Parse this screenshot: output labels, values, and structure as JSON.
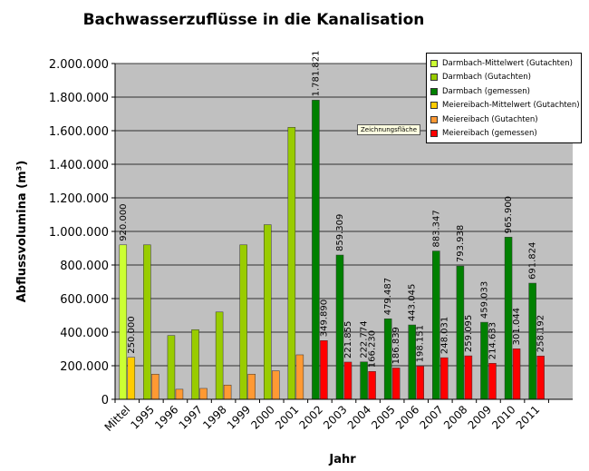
{
  "chart_data": {
    "type": "bar",
    "title": "Bachwasserzuflüsse in die Kanalisation",
    "xlabel": "Jahr",
    "ylabel": "Abflussvolumina (m³)",
    "ylim": [
      0,
      2000000
    ],
    "yticks": [
      "0",
      "200.000",
      "400.000",
      "600.000",
      "800.000",
      "1.000.000",
      "1.200.000",
      "1.400.000",
      "1.600.000",
      "1.800.000",
      "2.000.000"
    ],
    "categories": [
      "Mittel",
      "1995",
      "1996",
      "1997",
      "1998",
      "1999",
      "2000",
      "2001",
      "2002",
      "2003",
      "2004",
      "2005",
      "2006",
      "2007",
      "2008",
      "2009",
      "2010",
      "2011",
      ""
    ],
    "series": [
      {
        "name": "Darmbach-Mittelwert (Gutachten)",
        "color": "#ccff33",
        "values": [
          920000,
          null,
          null,
          null,
          null,
          null,
          null,
          null,
          null,
          null,
          null,
          null,
          null,
          null,
          null,
          null,
          null,
          null,
          null
        ],
        "labels": [
          "920.000",
          "",
          "",
          "",
          "",
          "",
          "",
          "",
          "",
          "",
          "",
          "",
          "",
          "",
          "",
          "",
          "",
          "",
          ""
        ]
      },
      {
        "name": "Darmbach (Gutachten)",
        "color": "#99cc00",
        "values": [
          null,
          920000,
          380000,
          415000,
          520000,
          920000,
          1040000,
          1620000,
          null,
          null,
          null,
          null,
          null,
          null,
          null,
          null,
          null,
          null,
          null
        ],
        "labels": []
      },
      {
        "name": "Darmbach (gemessen)",
        "color": "#008000",
        "values": [
          null,
          null,
          null,
          null,
          null,
          null,
          null,
          null,
          1781821,
          859309,
          222774,
          479487,
          443045,
          883347,
          793938,
          459033,
          965900,
          691824,
          null
        ],
        "labels": [
          "",
          "",
          "",
          "",
          "",
          "",
          "",
          "",
          "1.781.821",
          "859.309",
          "222.774",
          "479.487",
          "443.045",
          "883.347",
          "793.938",
          "459.033",
          "965.900",
          "691.824",
          ""
        ]
      },
      {
        "name": "Meiereibach-Mittelwert (Gutachten)",
        "color": "#ffcc00",
        "values": [
          250000,
          null,
          null,
          null,
          null,
          null,
          null,
          null,
          null,
          null,
          null,
          null,
          null,
          null,
          null,
          null,
          null,
          null,
          null
        ],
        "labels": [
          "250.000",
          "",
          "",
          "",
          "",
          "",
          "",
          "",
          "",
          "",
          "",
          "",
          "",
          "",
          "",
          "",
          "",
          "",
          ""
        ]
      },
      {
        "name": "Meiereibach (Gutachten)",
        "color": "#ff9933",
        "values": [
          null,
          150000,
          60000,
          65000,
          85000,
          150000,
          170000,
          265000,
          null,
          null,
          null,
          null,
          null,
          null,
          null,
          null,
          null,
          null,
          null
        ],
        "labels": []
      },
      {
        "name": "Meiereibach (gemessen)",
        "color": "#ff0000",
        "values": [
          null,
          null,
          null,
          null,
          null,
          null,
          null,
          null,
          349890,
          221855,
          166230,
          186839,
          198151,
          248031,
          259095,
          214633,
          301044,
          258192,
          null
        ],
        "labels": [
          "",
          "",
          "",
          "",
          "",
          "",
          "",
          "",
          "349.890",
          "221.855",
          "166.230",
          "186.839",
          "198.151",
          "248.031",
          "259.095",
          "214.633",
          "301.044",
          "258.192",
          ""
        ]
      }
    ],
    "legend_position": "top-right",
    "grid": true,
    "plot_background": "#c0c0c0",
    "tooltip": "Zeichnungsfläche"
  }
}
